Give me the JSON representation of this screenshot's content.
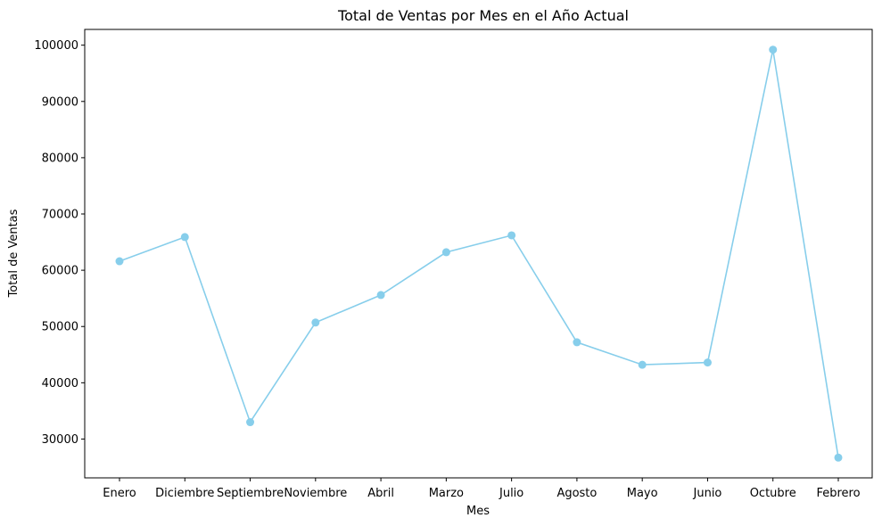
{
  "chart_data": {
    "type": "line",
    "title": "Total de Ventas por Mes en el Año Actual",
    "xlabel": "Mes",
    "ylabel": "Total de Ventas",
    "categories": [
      "Enero",
      "Diciembre",
      "Septiembre",
      "Noviembre",
      "Abril",
      "Marzo",
      "Julio",
      "Agosto",
      "Mayo",
      "Junio",
      "Octubre",
      "Febrero"
    ],
    "series": [
      {
        "values": [
          61600,
          65900,
          33000,
          50700,
          55600,
          63200,
          66200,
          47200,
          43200,
          43600,
          99200,
          26700
        ]
      }
    ],
    "yticks": [
      30000,
      40000,
      50000,
      60000,
      70000,
      80000,
      90000,
      100000
    ],
    "ytick_labels": [
      "30000",
      "40000",
      "50000",
      "60000",
      "70000",
      "80000",
      "90000",
      "100000"
    ],
    "ylim": [
      23100,
      102800
    ],
    "grid": false,
    "color": "#87CEEB"
  }
}
